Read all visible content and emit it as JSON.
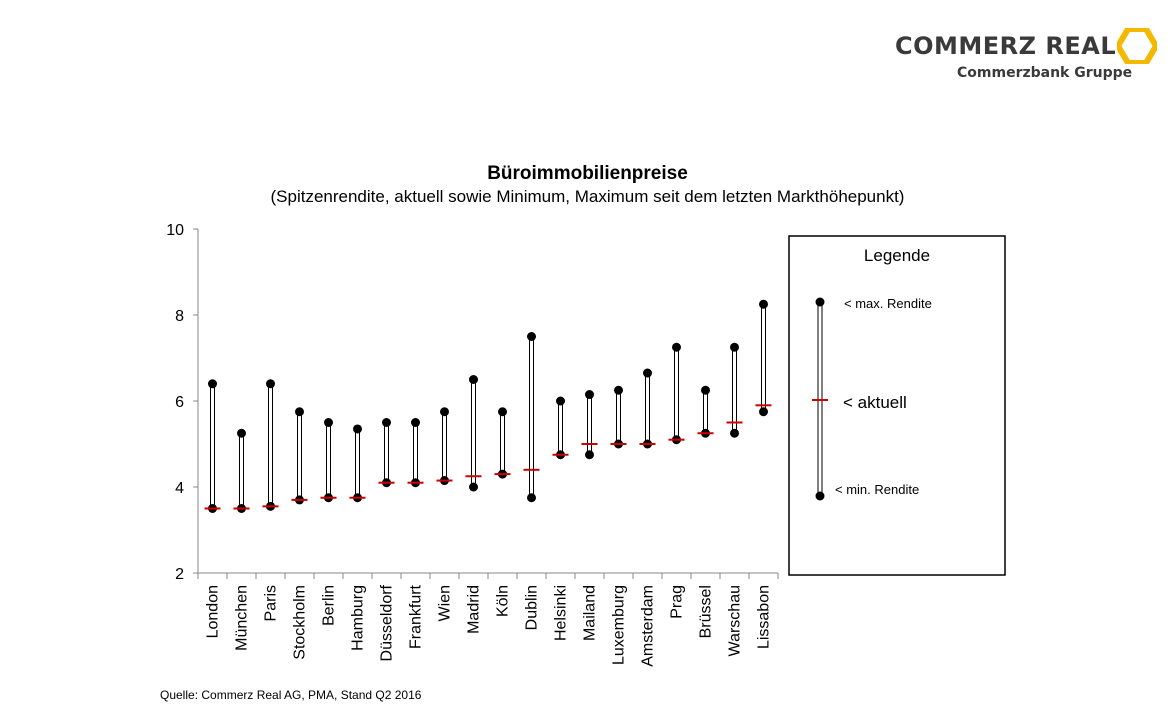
{
  "logo": {
    "name": "COMMERZ REAL",
    "group": "Commerzbank Gruppe",
    "mark_color": "#f5b800"
  },
  "chart_data": {
    "type": "range",
    "title": "Büroimmobilienpreise",
    "subtitle": "(Spitzenrendite, aktuell sowie Minimum, Maximum seit dem letzten Markthöhepunkt)",
    "ylim": [
      2,
      10
    ],
    "yticks": [
      2,
      4,
      6,
      8,
      10
    ],
    "grid": false,
    "categories": [
      "London",
      "München",
      "Paris",
      "Stockholm",
      "Berlin",
      "Hamburg",
      "Düsseldorf",
      "Frankfurt",
      "Wien",
      "Madrid",
      "Köln",
      "Dublin",
      "Helsinki",
      "Mailand",
      "Luxemburg",
      "Amsterdam",
      "Prag",
      "Brüssel",
      "Warschau",
      "Lissabon"
    ],
    "series": [
      {
        "name": "max. Rendite",
        "values": [
          6.4,
          5.25,
          6.4,
          5.75,
          5.5,
          5.35,
          5.5,
          5.5,
          5.75,
          6.5,
          5.75,
          7.5,
          6.0,
          6.15,
          6.25,
          6.65,
          7.25,
          6.25,
          7.25,
          8.25
        ]
      },
      {
        "name": "min. Rendite",
        "values": [
          3.5,
          3.5,
          3.55,
          3.7,
          3.75,
          3.75,
          4.1,
          4.1,
          4.15,
          4.0,
          4.3,
          3.75,
          4.75,
          4.75,
          5.0,
          5.0,
          5.1,
          5.25,
          5.25,
          5.75
        ]
      },
      {
        "name": "aktuell",
        "values": [
          3.5,
          3.5,
          3.55,
          3.7,
          3.75,
          3.75,
          4.1,
          4.1,
          4.15,
          4.25,
          4.3,
          4.4,
          4.75,
          5.0,
          5.0,
          5.0,
          5.1,
          5.25,
          5.5,
          5.9
        ]
      }
    ],
    "colors": {
      "range": "#000000",
      "aktuell": "#cc0000"
    },
    "legend": {
      "title": "Legende",
      "max_label": "< max. Rendite",
      "current_label": "< aktuell",
      "min_label": "< min. Rendite",
      "position": "right"
    }
  },
  "source": "Quelle: Commerz Real AG, PMA, Stand Q2 2016"
}
